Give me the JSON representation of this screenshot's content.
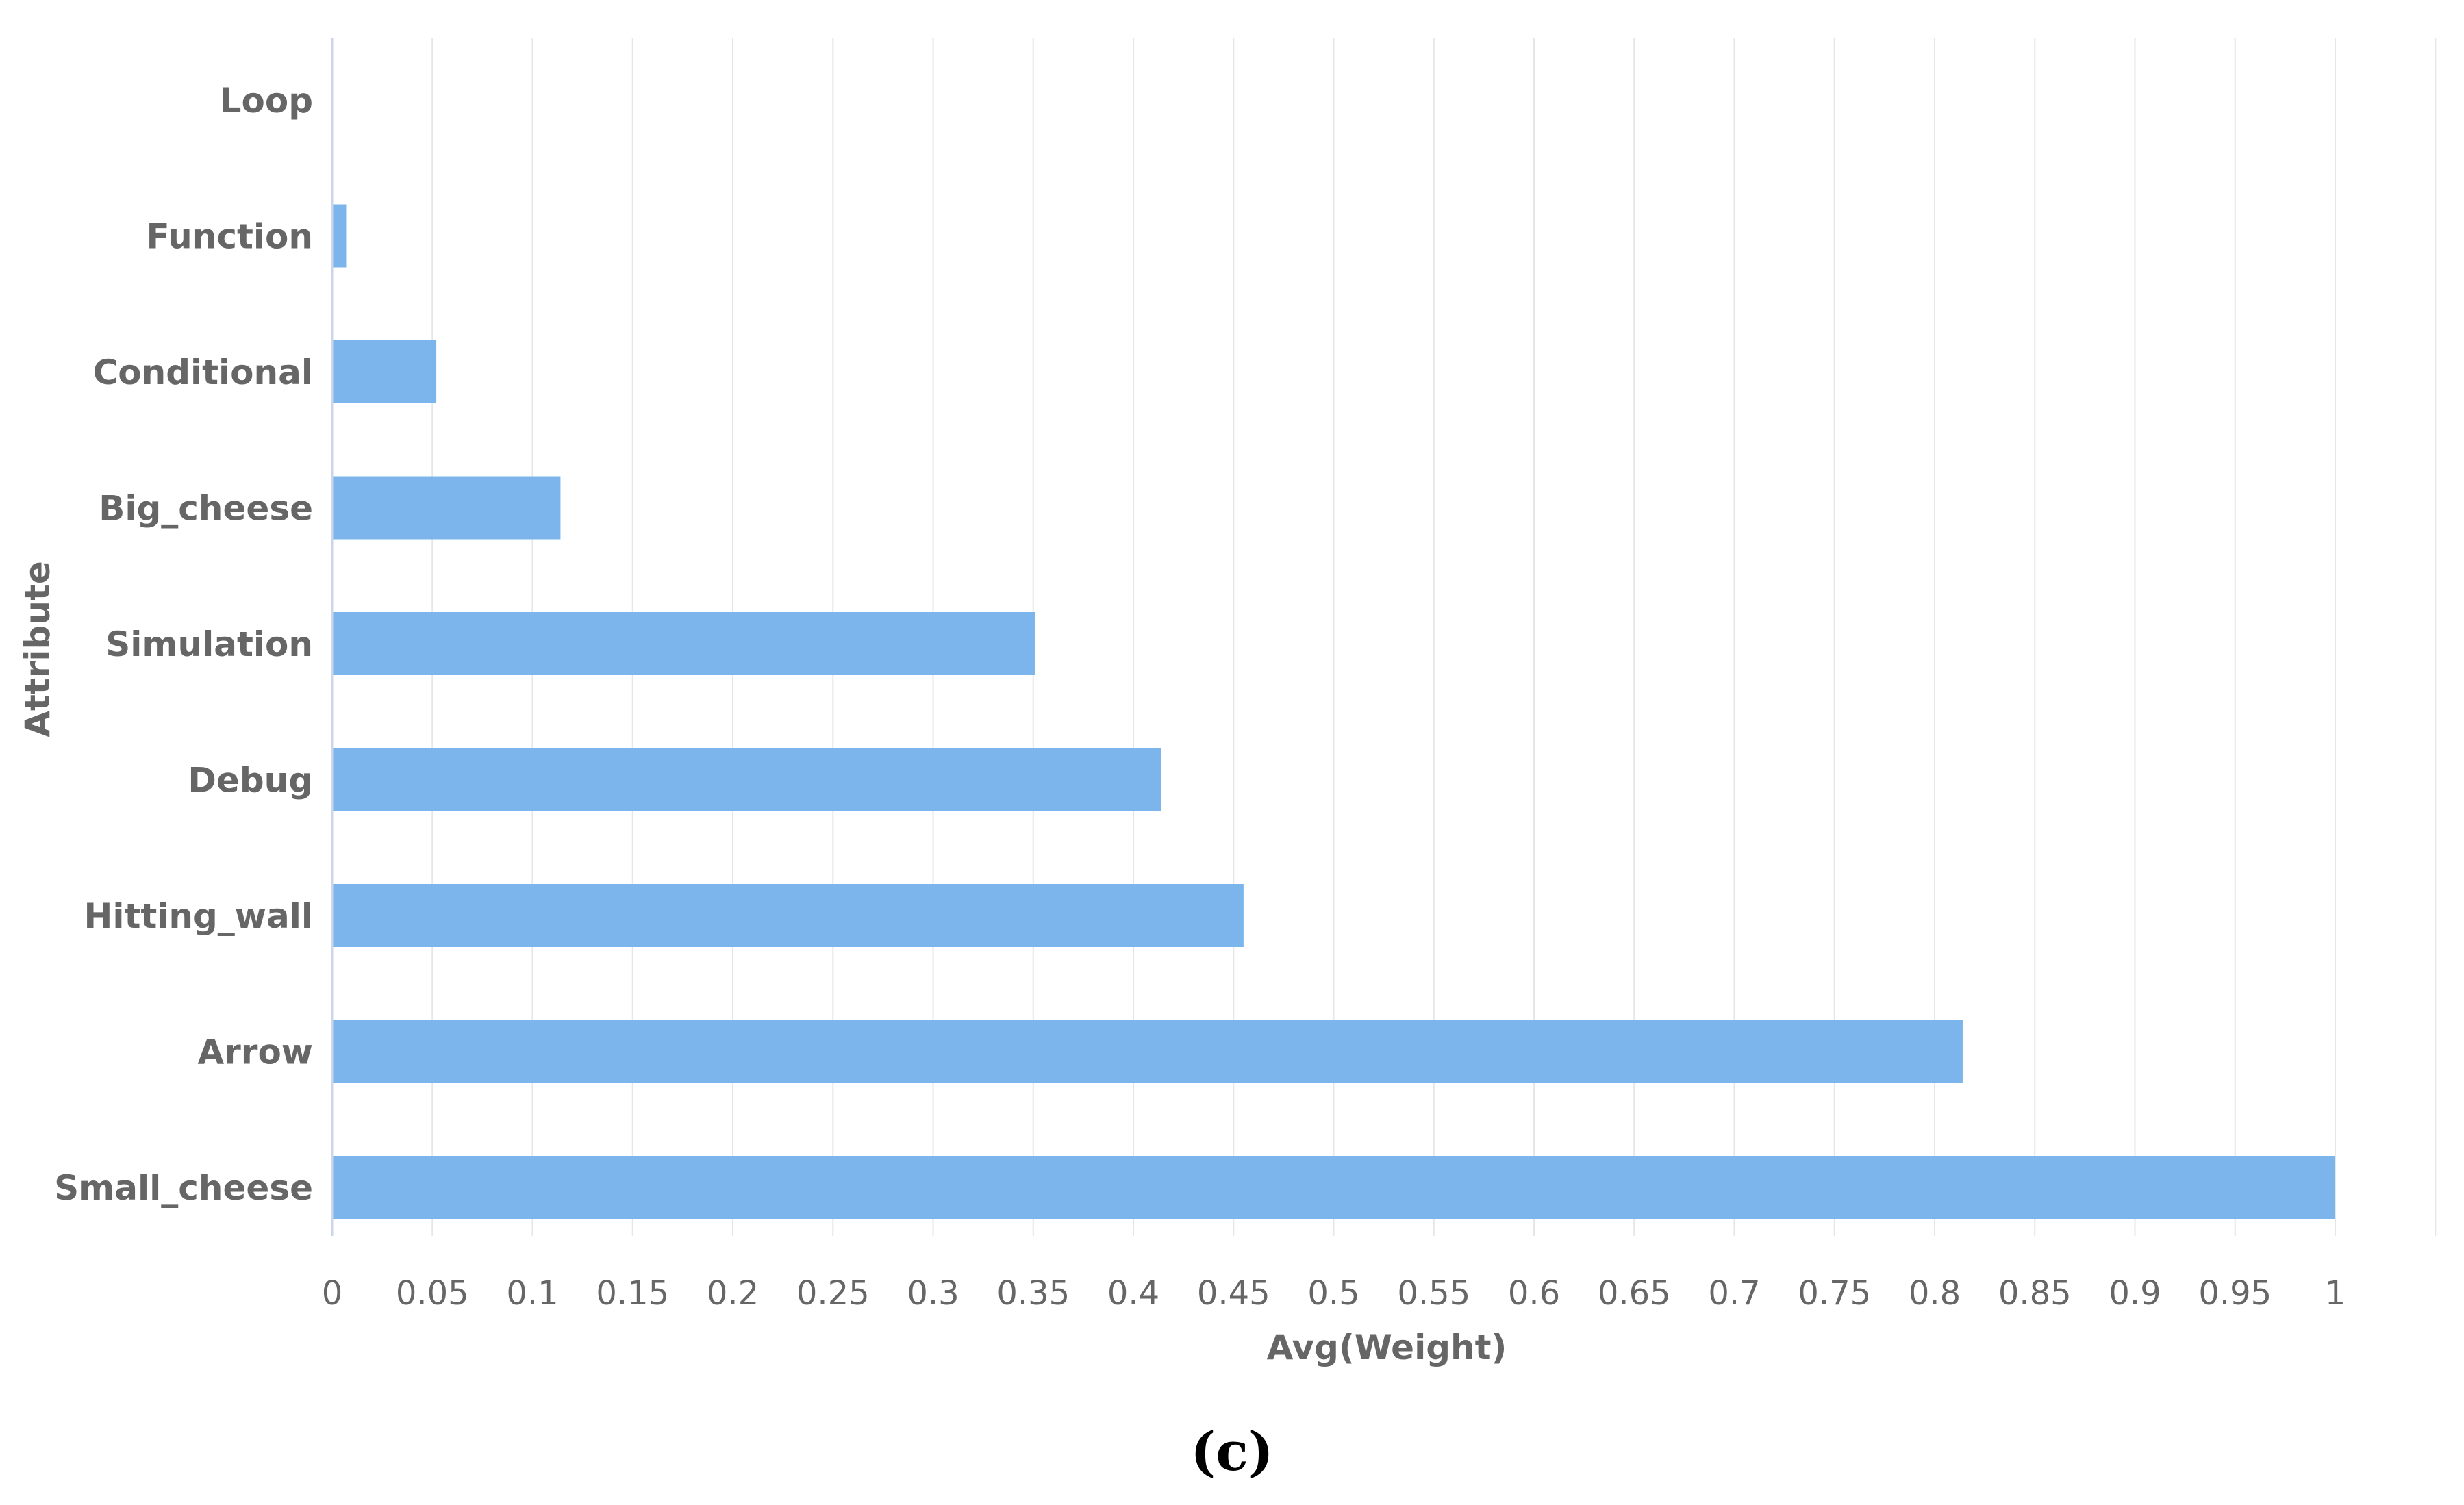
{
  "caption": "(c)",
  "colors": {
    "bar": "#7cb5ec",
    "grid": "#e6e6e6",
    "axis_line": "#ccd6eb",
    "text": "#666666"
  },
  "chart_data": {
    "type": "bar",
    "orientation": "horizontal",
    "xlabel": "Avg(Weight)",
    "ylabel": "Attribute",
    "xlim": [
      0,
      1.05
    ],
    "categories": [
      "Loop",
      "Function",
      "Conditional",
      "Big_cheese",
      "Simulation",
      "Debug",
      "Hitting_wall",
      "Arrow",
      "Small_cheese"
    ],
    "values": [
      0.0,
      0.007,
      0.052,
      0.114,
      0.351,
      0.414,
      0.455,
      0.814,
      1.0
    ],
    "xticks": [
      "0",
      "0.05",
      "0.1",
      "0.15",
      "0.2",
      "0.25",
      "0.3",
      "0.35",
      "0.4",
      "0.45",
      "0.5",
      "0.55",
      "0.6",
      "0.65",
      "0.7",
      "0.75",
      "0.8",
      "0.85",
      "0.9",
      "0.95",
      "1"
    ],
    "grid": true
  }
}
